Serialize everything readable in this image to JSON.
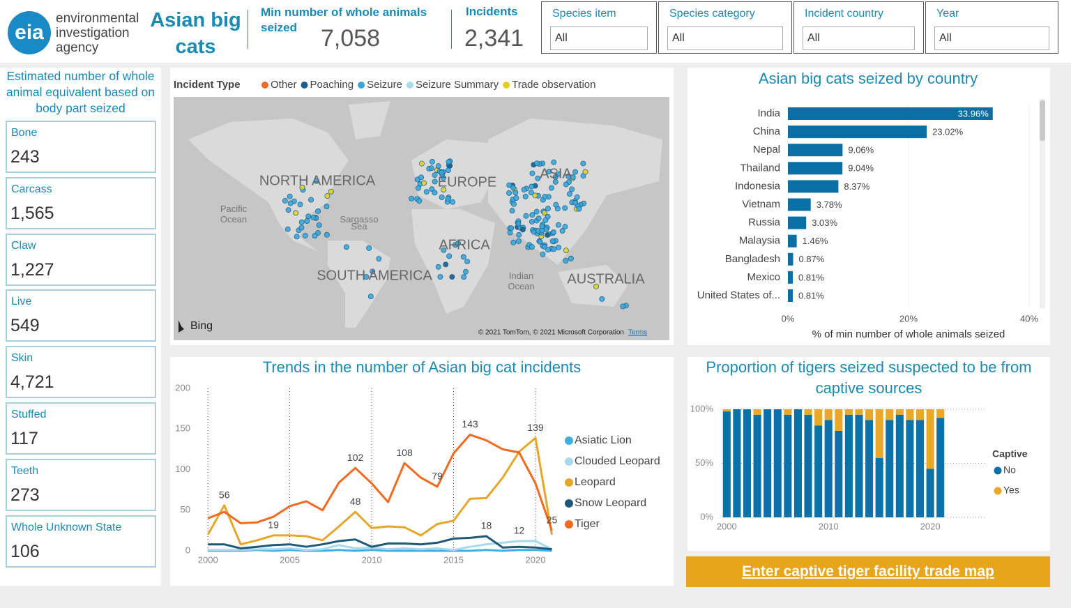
{
  "header": {
    "logo": "eia",
    "org": "environmental investigation agency",
    "title": "Asian big cats"
  },
  "kpis": [
    {
      "label": "Min number of whole animals seized",
      "value": "7,058"
    },
    {
      "label": "Incidents",
      "value": "2,341"
    }
  ],
  "filters": [
    {
      "label": "Species item",
      "value": "All"
    },
    {
      "label": "Species category",
      "value": "All"
    },
    {
      "label": "Incident country",
      "value": "All"
    },
    {
      "label": "Year",
      "value": "All"
    }
  ],
  "body_parts": {
    "title": "Estimated number of whole animal equivalent based on body part seized",
    "items": [
      {
        "label": "Bone",
        "value": "243"
      },
      {
        "label": "Carcass",
        "value": "1,565"
      },
      {
        "label": "Claw",
        "value": "1,227"
      },
      {
        "label": "Live",
        "value": "549"
      },
      {
        "label": "Skin",
        "value": "4,721"
      },
      {
        "label": "Stuffed",
        "value": "117"
      },
      {
        "label": "Teeth",
        "value": "273"
      },
      {
        "label": "Whole Unknown State",
        "value": "106"
      }
    ]
  },
  "map": {
    "legend_title": "Incident Type",
    "legend": [
      {
        "name": "Other",
        "color": "#ea6a2c"
      },
      {
        "name": "Poaching",
        "color": "#1a5c8a"
      },
      {
        "name": "Seizure",
        "color": "#3aa6d8"
      },
      {
        "name": "Seizure Summary",
        "color": "#a8daf0"
      },
      {
        "name": "Trade observation",
        "color": "#e4cf1f"
      }
    ],
    "labels": [
      "NORTH AMERICA",
      "EUROPE",
      "ASIA",
      "AFRICA",
      "SOUTH AMERICA",
      "AUSTRALIA",
      "Pacific Ocean",
      "Sargasso Sea",
      "Indian Ocean"
    ],
    "brand": "Bing",
    "attribution": "© 2021 TomTom, © 2021 Microsoft Corporation",
    "terms": "Terms"
  },
  "chart_data": [
    {
      "type": "hbar",
      "title": "Asian big cats seized by country",
      "categories": [
        "India",
        "China",
        "Nepal",
        "Thailand",
        "Indonesia",
        "Vietnam",
        "Russia",
        "Malaysia",
        "Bangladesh",
        "Mexico",
        "United States of..."
      ],
      "values": [
        33.96,
        23.02,
        9.06,
        9.04,
        8.37,
        3.78,
        3.03,
        1.46,
        0.87,
        0.81,
        0.81
      ],
      "value_labels": [
        "33.96%",
        "23.02%",
        "9.06%",
        "9.04%",
        "8.37%",
        "3.78%",
        "3.03%",
        "1.46%",
        "0.87%",
        "0.81%",
        "0.81%"
      ],
      "color": "#0a6fa5",
      "xlim": [
        0,
        40
      ],
      "xticks": [
        {
          "value": 0,
          "label": "0%"
        },
        {
          "value": 20,
          "label": "20%"
        },
        {
          "value": 40,
          "label": "40%"
        }
      ],
      "xlabel": "% of min number of whole animals seized",
      "grid": true
    },
    {
      "type": "line",
      "title": "Trends in the number of Asian big cat incidents",
      "x": [
        2000,
        2001,
        2002,
        2003,
        2004,
        2005,
        2006,
        2007,
        2008,
        2009,
        2010,
        2011,
        2012,
        2013,
        2014,
        2015,
        2016,
        2017,
        2018,
        2019,
        2020,
        2021
      ],
      "xlim": [
        1999.65,
        2021.15
      ],
      "xticks": [
        2000,
        2005,
        2010,
        2015,
        2020
      ],
      "ylim": [
        0,
        200
      ],
      "yticks": [
        0,
        50,
        100,
        150,
        200
      ],
      "grid": "x",
      "series": [
        {
          "name": "Asiatic Lion",
          "color": "#40b0e0",
          "values": [
            0,
            0,
            0,
            1,
            0,
            1,
            0,
            0,
            1,
            0,
            1,
            0,
            0,
            0,
            0,
            0,
            0,
            1,
            0,
            1,
            1,
            0
          ]
        },
        {
          "name": "Clouded Leopard",
          "color": "#a8d8ee",
          "values": [
            1,
            1,
            1,
            2,
            2,
            3,
            1,
            2,
            7,
            3,
            4,
            2,
            3,
            2,
            3,
            1,
            5,
            8,
            10,
            12,
            12,
            2
          ],
          "value_labels": [
            null,
            null,
            null,
            null,
            null,
            null,
            null,
            null,
            null,
            null,
            null,
            null,
            null,
            null,
            null,
            null,
            null,
            null,
            null,
            "12",
            null,
            null
          ]
        },
        {
          "name": "Leopard",
          "color": "#e6a62a",
          "values": [
            20,
            56,
            8,
            13,
            19,
            19,
            18,
            13,
            30,
            48,
            28,
            30,
            29,
            19,
            33,
            37,
            64,
            65,
            90,
            122,
            139,
            20
          ],
          "value_labels": [
            null,
            "56",
            null,
            null,
            "19",
            null,
            null,
            null,
            null,
            "48",
            null,
            null,
            null,
            null,
            null,
            null,
            null,
            null,
            null,
            null,
            "139",
            null
          ]
        },
        {
          "name": "Snow Leopard",
          "color": "#1e5a78",
          "values": [
            8,
            8,
            3,
            5,
            7,
            8,
            5,
            8,
            12,
            14,
            5,
            9,
            9,
            8,
            10,
            15,
            16,
            18,
            4,
            5,
            4,
            2
          ],
          "value_labels": [
            null,
            null,
            null,
            null,
            null,
            null,
            null,
            null,
            null,
            null,
            null,
            null,
            null,
            null,
            null,
            null,
            null,
            "18",
            null,
            null,
            null,
            null
          ]
        },
        {
          "name": "Tiger",
          "color": "#f26a22",
          "values": [
            40,
            48,
            34,
            35,
            42,
            55,
            61,
            50,
            84,
            102,
            83,
            60,
            108,
            90,
            79,
            120,
            143,
            136,
            125,
            121,
            83,
            25
          ],
          "value_labels": [
            null,
            null,
            null,
            null,
            null,
            null,
            null,
            null,
            null,
            "102",
            null,
            null,
            "108",
            null,
            "79",
            null,
            "143",
            null,
            null,
            null,
            null,
            "25"
          ]
        }
      ]
    },
    {
      "type": "stacked_bar",
      "title": "Proportion of tigers seized suspected to be from captive sources",
      "x": [
        2000,
        2001,
        2002,
        2003,
        2004,
        2005,
        2006,
        2007,
        2008,
        2009,
        2010,
        2011,
        2012,
        2013,
        2014,
        2015,
        2016,
        2017,
        2018,
        2019,
        2020,
        2021
      ],
      "xlim": [
        1999.5,
        2021.5
      ],
      "xticks": [
        2000,
        2010,
        2020
      ],
      "ylim": [
        0,
        100
      ],
      "yticks": [
        {
          "value": 0,
          "label": "0%"
        },
        {
          "value": 50,
          "label": "50%"
        },
        {
          "value": 100,
          "label": "100%"
        }
      ],
      "grid": true,
      "legend_title": "Captive",
      "series": [
        {
          "name": "No",
          "color": "#0a72a8",
          "values": [
            98,
            100,
            100,
            95,
            100,
            100,
            95,
            100,
            95,
            85,
            90,
            80,
            95,
            95,
            90,
            55,
            90,
            95,
            90,
            90,
            45,
            92
          ]
        },
        {
          "name": "Yes",
          "color": "#e8a92a",
          "values": [
            2,
            0,
            0,
            5,
            0,
            0,
            5,
            0,
            5,
            15,
            10,
            20,
            5,
            5,
            10,
            45,
            10,
            5,
            10,
            10,
            55,
            8
          ]
        }
      ]
    }
  ],
  "button": "Enter captive tiger facility trade map"
}
